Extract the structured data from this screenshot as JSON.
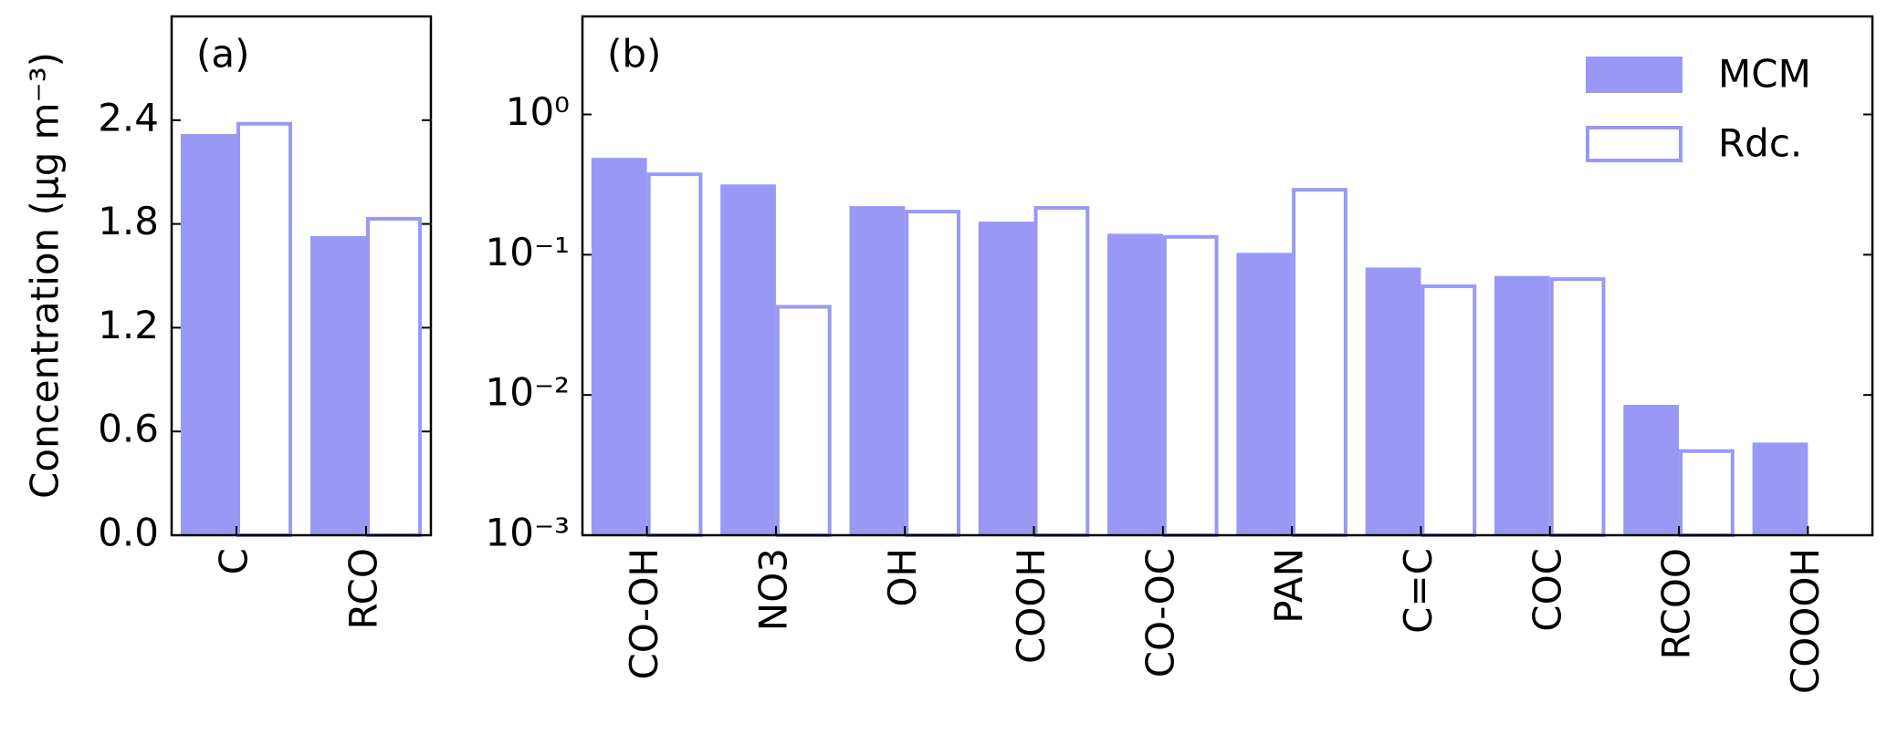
{
  "chart_data": [
    {
      "type": "bar",
      "annotation": "(a)",
      "ylabel": "Concentration (μg m⁻³)",
      "categories": [
        "C",
        "RCO"
      ],
      "series": [
        {
          "name": "MCM",
          "color": "#9999f5",
          "style": "filled",
          "values": [
            2.32,
            1.73
          ]
        },
        {
          "name": "Rdc.",
          "color": "#9999f5",
          "style": "outline",
          "values": [
            2.39,
            1.84
          ]
        }
      ],
      "ylim": [
        0,
        3.0
      ],
      "yticks": [
        {
          "value": 0,
          "label": "0.0"
        },
        0.6,
        1.2,
        1.8,
        2.4
      ],
      "yscale": "linear"
    },
    {
      "type": "bar",
      "annotation": "(b)",
      "categories": [
        "CO-OH",
        "NO3",
        "OH",
        "COOH",
        "CO-OC",
        "PAN",
        "C=C",
        "COC",
        "RCOO",
        "COOOH"
      ],
      "series": [
        {
          "name": "MCM",
          "color": "#9999f5",
          "style": "filled",
          "values": [
            0.49,
            0.317,
            0.222,
            0.172,
            0.141,
            0.103,
            0.081,
            0.0705,
            0.0085,
            0.00458
          ]
        },
        {
          "name": "Rdc.",
          "color": "#9999f5",
          "style": "outline",
          "values": [
            0.386,
            0.0438,
            0.209,
            0.222,
            0.138,
            0.299,
            0.0614,
            0.069,
            0.0041,
            null
          ]
        }
      ],
      "ylim": [
        0.001,
        5
      ],
      "yticks": [
        {
          "value": 0.001,
          "label": "10⁻³"
        },
        {
          "value": 0.01,
          "label": "10⁻²"
        },
        {
          "value": 0.1,
          "label": "10⁻¹"
        },
        {
          "value": 1,
          "label": "10⁰"
        }
      ],
      "yscale": "log",
      "legend": "upper right"
    }
  ]
}
